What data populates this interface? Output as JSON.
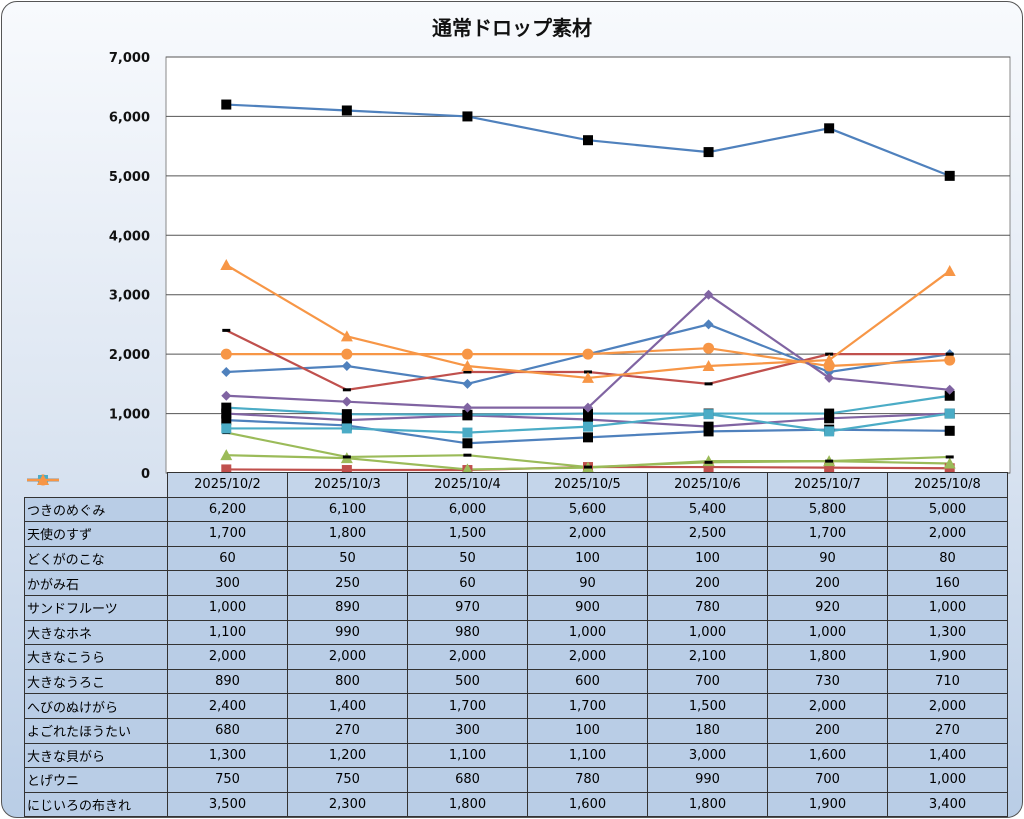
{
  "chart_data": {
    "type": "line",
    "title": "通常ドロップ素材",
    "xlabel": "",
    "ylabel": "",
    "ylim": [
      0,
      7000
    ],
    "y_ticks": [
      "0",
      "1,000",
      "2,000",
      "3,000",
      "4,000",
      "5,000",
      "6,000",
      "7,000"
    ],
    "y_tick_values": [
      0,
      1000,
      2000,
      3000,
      4000,
      5000,
      6000,
      7000
    ],
    "grid": true,
    "legend": "data-table",
    "categories": [
      "2025/10/2",
      "2025/10/3",
      "2025/10/4",
      "2025/10/5",
      "2025/10/6",
      "2025/10/7",
      "2025/10/8"
    ],
    "series": [
      {
        "name": "つきのめぐみ",
        "color": "#4f81bd",
        "marker": "square-black",
        "values": [
          6200,
          6100,
          6000,
          5600,
          5400,
          5800,
          5000
        ],
        "labels": [
          "6,200",
          "6,100",
          "6,000",
          "5,600",
          "5,400",
          "5,800",
          "5,000"
        ]
      },
      {
        "name": "天使のすず",
        "color": "#4f81bd",
        "marker": "diamond",
        "values": [
          1700,
          1800,
          1500,
          2000,
          2500,
          1700,
          2000
        ],
        "labels": [
          "1,700",
          "1,800",
          "1,500",
          "2,000",
          "2,500",
          "1,700",
          "2,000"
        ]
      },
      {
        "name": "どくがのこな",
        "color": "#c0504d",
        "marker": "square",
        "values": [
          60,
          50,
          50,
          100,
          100,
          90,
          80
        ],
        "labels": [
          "60",
          "50",
          "50",
          "100",
          "100",
          "90",
          "80"
        ]
      },
      {
        "name": "かがみ石",
        "color": "#9bbb59",
        "marker": "triangle",
        "values": [
          300,
          250,
          60,
          90,
          200,
          200,
          160
        ],
        "labels": [
          "300",
          "250",
          "60",
          "90",
          "200",
          "200",
          "160"
        ]
      },
      {
        "name": "サンドフルーツ",
        "color": "#8064a2",
        "marker": "square-black",
        "values": [
          1000,
          890,
          970,
          900,
          780,
          920,
          1000
        ],
        "labels": [
          "1,000",
          "890",
          "970",
          "900",
          "780",
          "920",
          "1,000"
        ]
      },
      {
        "name": "大きなホネ",
        "color": "#4bacc6",
        "marker": "square-black",
        "values": [
          1100,
          990,
          980,
          1000,
          1000,
          1000,
          1300
        ],
        "labels": [
          "1,100",
          "990",
          "980",
          "1,000",
          "1,000",
          "1,000",
          "1,300"
        ]
      },
      {
        "name": "大きなこうら",
        "color": "#f79646",
        "marker": "circle",
        "values": [
          2000,
          2000,
          2000,
          2000,
          2100,
          1800,
          1900
        ],
        "labels": [
          "2,000",
          "2,000",
          "2,000",
          "2,000",
          "2,100",
          "1,800",
          "1,900"
        ]
      },
      {
        "name": "大きなうろこ",
        "color": "#4f81bd",
        "marker": "square-black",
        "values": [
          890,
          800,
          500,
          600,
          700,
          730,
          710
        ],
        "labels": [
          "890",
          "800",
          "500",
          "600",
          "700",
          "730",
          "710"
        ]
      },
      {
        "name": "へびのぬけがら",
        "color": "#c0504d",
        "marker": "dash-black",
        "values": [
          2400,
          1400,
          1700,
          1700,
          1500,
          2000,
          2000
        ],
        "labels": [
          "2,400",
          "1,400",
          "1,700",
          "1,700",
          "1,500",
          "2,000",
          "2,000"
        ]
      },
      {
        "name": "よごれたほうたい",
        "color": "#9bbb59",
        "marker": "dash-black",
        "values": [
          680,
          270,
          300,
          100,
          180,
          200,
          270
        ],
        "labels": [
          "680",
          "270",
          "300",
          "100",
          "180",
          "200",
          "270"
        ]
      },
      {
        "name": "大きな貝がら",
        "color": "#8064a2",
        "marker": "diamond",
        "values": [
          1300,
          1200,
          1100,
          1100,
          3000,
          1600,
          1400
        ],
        "labels": [
          "1,300",
          "1,200",
          "1,100",
          "1,100",
          "3,000",
          "1,600",
          "1,400"
        ]
      },
      {
        "name": "とげウニ",
        "color": "#4bacc6",
        "marker": "square",
        "values": [
          750,
          750,
          680,
          780,
          990,
          700,
          1000
        ],
        "labels": [
          "750",
          "750",
          "680",
          "780",
          "990",
          "700",
          "1,000"
        ]
      },
      {
        "name": "にじいろの布きれ",
        "color": "#f79646",
        "marker": "triangle",
        "values": [
          3500,
          2300,
          1800,
          1600,
          1800,
          1900,
          3400
        ],
        "labels": [
          "3,500",
          "2,300",
          "1,800",
          "1,600",
          "1,800",
          "1,900",
          "3,400"
        ]
      }
    ]
  }
}
